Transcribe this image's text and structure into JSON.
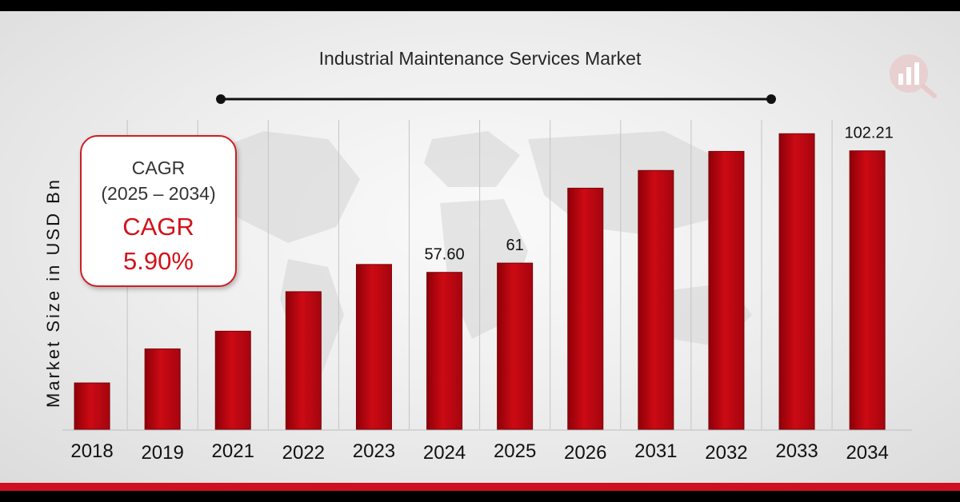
{
  "chart_data": {
    "type": "bar",
    "title": "Industrial Maintenance Services Market",
    "ylabel": "Market Size in USD Bn",
    "xlabel": "",
    "categories": [
      "2018",
      "2019",
      "2021",
      "2022",
      "2023",
      "2024",
      "2025",
      "2026",
      "2031",
      "2032",
      "2033",
      "2034"
    ],
    "values": [
      17,
      29.5,
      36,
      50.5,
      60.5,
      57.6,
      61,
      88.5,
      95,
      102.0,
      108.5,
      102.21
    ],
    "data_labels": [
      {
        "category": "2024",
        "text": "57.60"
      },
      {
        "category": "2025",
        "text": "61"
      },
      {
        "category": "2034",
        "text": "102.21"
      }
    ],
    "ylim": [
      0,
      130
    ],
    "grid": "vertical lines between categories",
    "bar_color": "#cc0a14"
  },
  "cagr_box": {
    "heading": "CAGR",
    "period": "(2025 – 2034)",
    "label": "CAGR",
    "value": "5.90%"
  },
  "colors": {
    "accent": "#cf1020",
    "cagr_text": "#d3121a",
    "background": "#efefef"
  },
  "logo_icon": "bar-chart-magnifier-icon"
}
